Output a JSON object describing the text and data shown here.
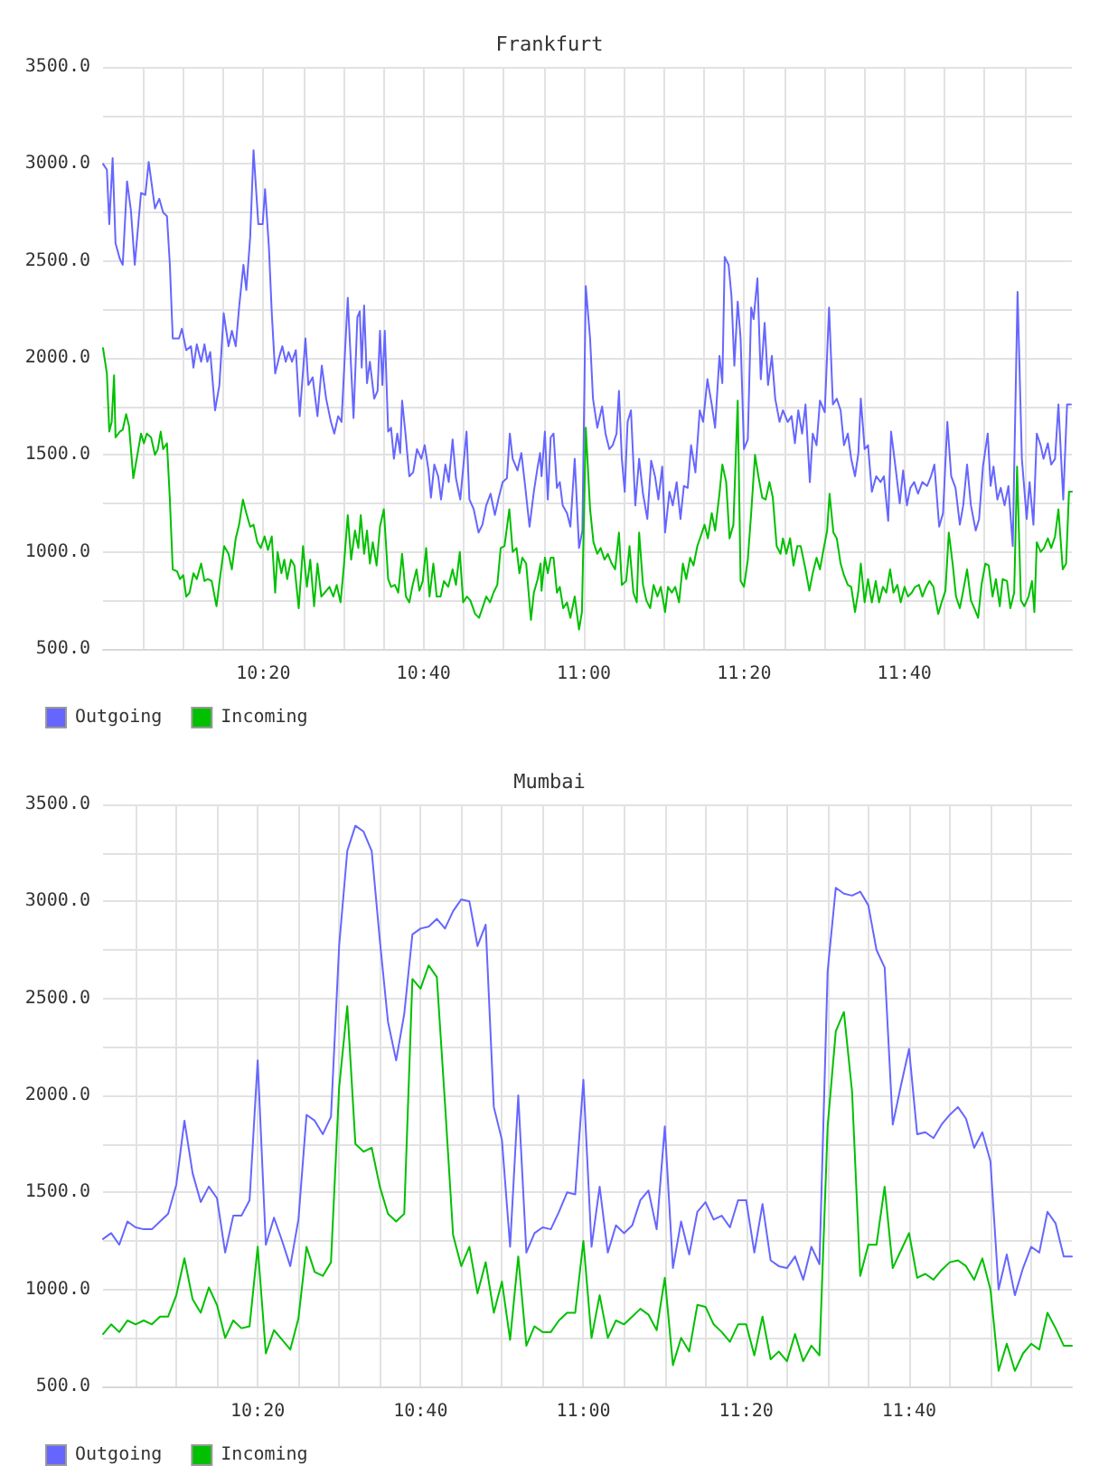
{
  "chart_data": [
    {
      "type": "line",
      "title": "Frankfurt",
      "xlim": [
        10,
        12.015
      ],
      "ylim": [
        500,
        3500
      ],
      "xticks": [
        {
          "value": 10.0833,
          "label": null
        },
        {
          "value": 10.1667,
          "label": null
        },
        {
          "value": 10.25,
          "label": null
        },
        {
          "value": 10.3333,
          "label": "10:20"
        },
        {
          "value": 10.4167,
          "label": null
        },
        {
          "value": 10.5,
          "label": null
        },
        {
          "value": 10.5833,
          "label": null
        },
        {
          "value": 10.6667,
          "label": "10:40"
        },
        {
          "value": 10.75,
          "label": null
        },
        {
          "value": 10.8333,
          "label": null
        },
        {
          "value": 10.9167,
          "label": null
        },
        {
          "value": 11,
          "label": "11:00"
        },
        {
          "value": 11.0833,
          "label": null
        },
        {
          "value": 11.1667,
          "label": null
        },
        {
          "value": 11.25,
          "label": null
        },
        {
          "value": 11.3333,
          "label": "11:20"
        },
        {
          "value": 11.4167,
          "label": null
        },
        {
          "value": 11.5,
          "label": null
        },
        {
          "value": 11.5833,
          "label": null
        },
        {
          "value": 11.6667,
          "label": "11:40"
        },
        {
          "value": 11.75,
          "label": null
        },
        {
          "value": 11.8333,
          "label": null
        },
        {
          "value": 11.9167,
          "label": null
        }
      ],
      "yticks": [
        {
          "value": 500,
          "label": "500.0"
        },
        {
          "value": 750,
          "label": null
        },
        {
          "value": 1000,
          "label": "1000.0"
        },
        {
          "value": 1250,
          "label": null
        },
        {
          "value": 1500,
          "label": "1500.0"
        },
        {
          "value": 1750,
          "label": null
        },
        {
          "value": 2000,
          "label": "2000.0"
        },
        {
          "value": 2250,
          "label": null
        },
        {
          "value": 2500,
          "label": "2500.0"
        },
        {
          "value": 2750,
          "label": null
        },
        {
          "value": 3000,
          "label": "3000.0"
        },
        {
          "value": 3250,
          "label": null
        },
        {
          "value": 3500,
          "label": "3500.0"
        }
      ],
      "grid": true,
      "legend": "bottom left",
      "marker": "none",
      "series": [
        {
          "name": "Outgoing",
          "color": "#6666ff",
          "x": [
            10.0,
            10.008,
            10.013,
            10.02,
            10.026,
            10.035,
            10.041,
            10.05,
            10.058,
            10.066,
            10.079,
            10.088,
            10.095,
            10.108,
            10.117,
            10.125,
            10.133,
            10.139,
            10.145,
            10.158,
            10.164,
            10.173,
            10.183,
            10.188,
            10.195,
            10.204,
            10.211,
            10.217,
            10.223,
            10.233,
            10.242,
            10.251,
            10.261,
            10.268,
            10.276,
            10.283,
            10.292,
            10.298,
            10.306,
            10.313,
            10.323,
            10.332,
            10.337,
            10.345,
            10.351,
            10.358,
            10.367,
            10.373,
            10.38,
            10.386,
            10.393,
            10.401,
            10.409,
            10.421,
            10.427,
            10.436,
            10.446,
            10.455,
            10.464,
            10.474,
            10.481,
            10.489,
            10.496,
            10.501,
            10.509,
            10.521,
            10.529,
            10.534,
            10.538,
            10.543,
            10.549,
            10.555,
            10.564,
            10.571,
            10.576,
            10.581,
            10.586,
            10.593,
            10.599,
            10.605,
            10.612,
            10.618,
            10.622,
            10.629,
            10.637,
            10.645,
            10.653,
            10.662,
            10.669,
            10.677,
            10.682,
            10.689,
            10.697,
            10.703,
            10.712,
            10.719,
            10.727,
            10.734,
            10.743,
            10.756,
            10.762,
            10.771,
            10.781,
            10.789,
            10.797,
            10.806,
            10.815,
            10.822,
            10.831,
            10.84,
            10.846,
            10.852,
            10.862,
            10.87,
            10.877,
            10.887,
            10.896,
            10.904,
            10.909,
            10.912,
            10.919,
            10.925,
            10.931,
            10.937,
            10.944,
            10.95,
            10.956,
            10.965,
            10.972,
            10.981,
            10.99,
            10.997,
            11.004,
            11.013,
            11.019,
            11.028,
            11.038,
            11.045,
            11.053,
            11.06,
            11.068,
            11.073,
            11.079,
            11.085,
            11.091,
            11.098,
            11.107,
            11.115,
            11.123,
            11.132,
            11.14,
            11.148,
            11.155,
            11.163,
            11.169,
            11.178,
            11.185,
            11.193,
            11.201,
            11.208,
            11.216,
            11.223,
            11.232,
            11.241,
            11.248,
            11.257,
            11.266,
            11.273,
            11.282,
            11.288,
            11.293,
            11.301,
            11.307,
            11.313,
            11.32,
            11.326,
            11.333,
            11.341,
            11.348,
            11.353,
            11.361,
            11.368,
            11.376,
            11.383,
            11.391,
            11.398,
            11.407,
            11.414,
            11.424,
            11.432,
            11.439,
            11.446,
            11.454,
            11.461,
            11.47,
            11.476,
            11.484,
            11.491,
            11.501,
            11.51,
            11.518,
            11.526,
            11.534,
            11.541,
            11.549,
            11.556,
            11.564,
            11.571,
            11.576,
            11.584,
            11.591,
            11.599,
            11.608,
            11.617,
            11.624,
            11.633,
            11.639,
            11.649,
            11.657,
            11.664,
            11.672,
            11.679,
            11.687,
            11.695,
            11.704,
            11.714,
            11.722,
            11.729,
            11.739,
            11.747,
            11.756,
            11.764,
            11.773,
            11.782,
            11.789,
            11.797,
            11.805,
            11.815,
            11.822,
            11.83,
            11.84,
            11.846,
            11.852,
            11.86,
            11.867,
            11.875,
            11.883,
            11.892,
            11.902,
            11.911,
            11.921,
            11.927,
            11.935,
            11.942,
            11.95,
            11.956,
            11.965,
            11.972,
            11.98,
            11.987,
            11.997,
            12.005,
            12.013
          ],
          "values": [
            3000,
            2970,
            2690,
            3030,
            2590,
            2510,
            2480,
            2910,
            2760,
            2480,
            2850,
            2840,
            3010,
            2770,
            2820,
            2750,
            2730,
            2480,
            2100,
            2100,
            2150,
            2040,
            2060,
            1950,
            2070,
            1980,
            2070,
            1980,
            2030,
            1730,
            1860,
            2230,
            2060,
            2140,
            2060,
            2260,
            2480,
            2350,
            2620,
            3070,
            2690,
            2690,
            2870,
            2570,
            2230,
            1920,
            2010,
            2060,
            1980,
            2030,
            1980,
            2040,
            1700,
            2100,
            1860,
            1900,
            1700,
            1960,
            1790,
            1670,
            1610,
            1700,
            1670,
            1920,
            2310,
            1690,
            2210,
            2240,
            1950,
            2270,
            1870,
            1980,
            1790,
            1830,
            2140,
            1860,
            2140,
            1620,
            1640,
            1480,
            1610,
            1510,
            1780,
            1610,
            1390,
            1410,
            1530,
            1480,
            1550,
            1420,
            1280,
            1450,
            1390,
            1270,
            1450,
            1360,
            1580,
            1380,
            1270,
            1620,
            1270,
            1220,
            1100,
            1140,
            1240,
            1300,
            1190,
            1270,
            1360,
            1380,
            1610,
            1480,
            1420,
            1510,
            1360,
            1130,
            1310,
            1440,
            1510,
            1390,
            1620,
            1270,
            1590,
            1610,
            1330,
            1360,
            1240,
            1200,
            1130,
            1480,
            1020,
            1110,
            2370,
            2100,
            1790,
            1640,
            1750,
            1610,
            1530,
            1550,
            1610,
            1830,
            1480,
            1310,
            1670,
            1730,
            1240,
            1480,
            1300,
            1170,
            1470,
            1390,
            1270,
            1440,
            1100,
            1310,
            1240,
            1360,
            1170,
            1340,
            1330,
            1550,
            1410,
            1730,
            1670,
            1890,
            1760,
            1640,
            2010,
            1870,
            2520,
            2480,
            2320,
            1960,
            2290,
            2100,
            1530,
            1580,
            2260,
            2200,
            2410,
            1890,
            2180,
            1860,
            2010,
            1790,
            1670,
            1730,
            1670,
            1700,
            1560,
            1730,
            1610,
            1760,
            1360,
            1610,
            1550,
            1780,
            1720,
            2260,
            1760,
            1790,
            1730,
            1550,
            1610,
            1480,
            1390,
            1510,
            1790,
            1530,
            1550,
            1310,
            1390,
            1360,
            1390,
            1160,
            1620,
            1420,
            1250,
            1420,
            1240,
            1330,
            1360,
            1300,
            1360,
            1340,
            1390,
            1450,
            1130,
            1200,
            1670,
            1390,
            1330,
            1140,
            1240,
            1450,
            1240,
            1110,
            1170,
            1440,
            1610,
            1340,
            1440,
            1270,
            1330,
            1240,
            1340,
            1030,
            2340,
            1480,
            1170,
            1360,
            1140,
            1610,
            1550,
            1480,
            1560,
            1450,
            1480,
            1760,
            1270,
            1760,
            1760
          ]
        },
        {
          "name": "Incoming",
          "color": "#00c000",
          "x": [
            10.0,
            10.008,
            10.013,
            10.018,
            10.023,
            10.026,
            10.035,
            10.041,
            10.048,
            10.054,
            10.063,
            10.07,
            10.079,
            10.085,
            10.091,
            10.1,
            10.108,
            10.114,
            10.12,
            10.125,
            10.133,
            10.139,
            10.145,
            10.154,
            10.16,
            10.167,
            10.173,
            10.18,
            10.188,
            10.195,
            10.204,
            10.211,
            10.218,
            10.226,
            10.236,
            10.243,
            10.252,
            10.261,
            10.268,
            10.276,
            10.283,
            10.291,
            10.298,
            10.306,
            10.313,
            10.321,
            10.328,
            10.336,
            10.343,
            10.351,
            10.358,
            10.363,
            10.371,
            10.377,
            10.383,
            10.391,
            10.398,
            10.407,
            10.416,
            10.424,
            10.431,
            10.439,
            10.446,
            10.454,
            10.461,
            10.471,
            10.479,
            10.486,
            10.494,
            10.501,
            10.509,
            10.516,
            10.524,
            10.531,
            10.536,
            10.543,
            10.549,
            10.555,
            10.561,
            10.569,
            10.576,
            10.584,
            10.593,
            10.599,
            10.607,
            10.614,
            10.622,
            10.63,
            10.637,
            10.644,
            10.652,
            10.658,
            10.665,
            10.672,
            10.679,
            10.687,
            10.694,
            10.702,
            10.709,
            10.718,
            10.727,
            10.734,
            10.742,
            10.749,
            10.757,
            10.764,
            10.774,
            10.782,
            10.789,
            10.797,
            10.805,
            10.812,
            10.82,
            10.827,
            10.835,
            10.845,
            10.852,
            10.86,
            10.866,
            10.872,
            10.88,
            10.89,
            10.896,
            10.904,
            10.91,
            10.912,
            10.919,
            10.925,
            10.931,
            10.937,
            10.944,
            10.95,
            10.957,
            10.965,
            10.972,
            10.981,
            10.99,
            10.996,
            11.004,
            11.013,
            11.02,
            11.028,
            11.035,
            11.043,
            11.05,
            11.058,
            11.065,
            11.073,
            11.079,
            11.088,
            11.095,
            11.103,
            11.11,
            11.115,
            11.123,
            11.13,
            11.138,
            11.145,
            11.153,
            11.16,
            11.169,
            11.175,
            11.183,
            11.19,
            11.198,
            11.206,
            11.213,
            11.221,
            11.228,
            11.236,
            11.243,
            11.251,
            11.258,
            11.266,
            11.273,
            11.282,
            11.288,
            11.296,
            11.303,
            11.311,
            11.32,
            11.326,
            11.333,
            11.341,
            11.348,
            11.356,
            11.363,
            11.371,
            11.378,
            11.386,
            11.393,
            11.401,
            11.409,
            11.414,
            11.421,
            11.429,
            11.436,
            11.444,
            11.451,
            11.461,
            11.469,
            11.476,
            11.484,
            11.491,
            11.499,
            11.506,
            11.511,
            11.519,
            11.526,
            11.534,
            11.541,
            11.549,
            11.556,
            11.564,
            11.571,
            11.576,
            11.584,
            11.591,
            11.599,
            11.607,
            11.614,
            11.622,
            11.629,
            11.637,
            11.644,
            11.652,
            11.659,
            11.667,
            11.674,
            11.682,
            11.689,
            11.697,
            11.704,
            11.712,
            11.719,
            11.727,
            11.737,
            11.744,
            11.752,
            11.759,
            11.767,
            11.774,
            11.782,
            11.789,
            11.797,
            11.805,
            11.812,
            11.82,
            11.827,
            11.835,
            11.842,
            11.85,
            11.857,
            11.865,
            11.871,
            11.88,
            11.887,
            11.895,
            11.901,
            11.909,
            11.916,
            11.925,
            11.932,
            11.937,
            11.942,
            11.95,
            11.957,
            11.965,
            11.972,
            11.98,
            11.987,
            11.996,
            12.003,
            12.009,
            12.015
          ],
          "values": [
            2050,
            1920,
            1620,
            1670,
            1910,
            1590,
            1620,
            1630,
            1710,
            1650,
            1380,
            1480,
            1610,
            1560,
            1610,
            1590,
            1500,
            1530,
            1620,
            1530,
            1560,
            1270,
            910,
            900,
            860,
            880,
            770,
            790,
            890,
            860,
            940,
            850,
            860,
            850,
            720,
            860,
            1030,
            990,
            910,
            1070,
            1140,
            1270,
            1200,
            1130,
            1140,
            1050,
            1020,
            1080,
            1010,
            1080,
            790,
            1000,
            890,
            960,
            860,
            960,
            930,
            710,
            1030,
            820,
            960,
            720,
            940,
            770,
            790,
            820,
            770,
            830,
            740,
            930,
            1190,
            960,
            1110,
            1020,
            1190,
            990,
            1110,
            940,
            1050,
            930,
            1130,
            1220,
            860,
            820,
            830,
            790,
            990,
            770,
            740,
            830,
            910,
            800,
            850,
            1020,
            770,
            940,
            770,
            770,
            850,
            820,
            910,
            830,
            1000,
            740,
            770,
            750,
            680,
            660,
            710,
            770,
            740,
            790,
            830,
            1020,
            1030,
            1220,
            1000,
            1020,
            890,
            970,
            940,
            650,
            790,
            860,
            940,
            800,
            970,
            890,
            970,
            970,
            790,
            820,
            710,
            740,
            660,
            770,
            600,
            690,
            1640,
            1220,
            1050,
            990,
            1020,
            960,
            990,
            940,
            910,
            1100,
            830,
            850,
            1030,
            790,
            740,
            1100,
            830,
            750,
            710,
            830,
            770,
            820,
            690,
            820,
            790,
            820,
            740,
            940,
            860,
            970,
            930,
            1030,
            1080,
            1140,
            1070,
            1200,
            1110,
            1300,
            1450,
            1360,
            1070,
            1140,
            1780,
            850,
            820,
            960,
            1200,
            1500,
            1390,
            1280,
            1270,
            1360,
            1280,
            1030,
            990,
            1070,
            990,
            1070,
            930,
            1030,
            1030,
            910,
            800,
            890,
            970,
            910,
            1020,
            1110,
            1300,
            1100,
            1070,
            940,
            880,
            830,
            820,
            690,
            800,
            940,
            740,
            860,
            740,
            850,
            740,
            820,
            790,
            910,
            790,
            830,
            740,
            820,
            770,
            790,
            820,
            830,
            770,
            820,
            850,
            820,
            680,
            740,
            800,
            1100,
            940,
            770,
            710,
            800,
            910,
            750,
            710,
            660,
            830,
            940,
            930,
            770,
            860,
            720,
            860,
            850,
            710,
            790,
            1440,
            750,
            720,
            770,
            850,
            690,
            1050,
            1000,
            1020,
            1070,
            1020,
            1080,
            1220,
            910,
            940,
            1310,
            1310
          ]
        }
      ]
    },
    {
      "type": "line",
      "title": "Mumbai",
      "xlim": [
        10.0167,
        12
      ],
      "ylim": [
        500,
        3500
      ],
      "xticks": [
        {
          "value": 10.0833,
          "label": null
        },
        {
          "value": 10.1667,
          "label": null
        },
        {
          "value": 10.25,
          "label": null
        },
        {
          "value": 10.3333,
          "label": "10:20"
        },
        {
          "value": 10.4167,
          "label": null
        },
        {
          "value": 10.5,
          "label": null
        },
        {
          "value": 10.5833,
          "label": null
        },
        {
          "value": 10.6667,
          "label": "10:40"
        },
        {
          "value": 10.75,
          "label": null
        },
        {
          "value": 10.8333,
          "label": null
        },
        {
          "value": 10.9167,
          "label": null
        },
        {
          "value": 11,
          "label": "11:00"
        },
        {
          "value": 11.0833,
          "label": null
        },
        {
          "value": 11.1667,
          "label": null
        },
        {
          "value": 11.25,
          "label": null
        },
        {
          "value": 11.3333,
          "label": "11:20"
        },
        {
          "value": 11.4167,
          "label": null
        },
        {
          "value": 11.5,
          "label": null
        },
        {
          "value": 11.5833,
          "label": null
        },
        {
          "value": 11.6667,
          "label": "11:40"
        },
        {
          "value": 11.75,
          "label": null
        },
        {
          "value": 11.8333,
          "label": null
        },
        {
          "value": 11.9167,
          "label": null
        }
      ],
      "yticks": [
        {
          "value": 500,
          "label": "500.0"
        },
        {
          "value": 750,
          "label": null
        },
        {
          "value": 1000,
          "label": "1000.0"
        },
        {
          "value": 1250,
          "label": null
        },
        {
          "value": 1500,
          "label": "1500.0"
        },
        {
          "value": 1750,
          "label": null
        },
        {
          "value": 2000,
          "label": "2000.0"
        },
        {
          "value": 2250,
          "label": null
        },
        {
          "value": 2500,
          "label": "2500.0"
        },
        {
          "value": 2750,
          "label": null
        },
        {
          "value": 3000,
          "label": "3000.0"
        },
        {
          "value": 3250,
          "label": null
        },
        {
          "value": 3500,
          "label": "3500.0"
        }
      ],
      "grid": true,
      "legend": "bottom left",
      "marker": "none",
      "x": [
        10.0167,
        10.0333,
        10.05,
        10.0667,
        10.0833,
        10.1,
        10.1167,
        10.1333,
        10.15,
        10.1667,
        10.1833,
        10.2,
        10.2167,
        10.2333,
        10.25,
        10.2667,
        10.2833,
        10.3,
        10.3167,
        10.3333,
        10.35,
        10.3667,
        10.3833,
        10.4,
        10.4167,
        10.4333,
        10.45,
        10.4667,
        10.4833,
        10.5,
        10.5167,
        10.5333,
        10.55,
        10.5667,
        10.5833,
        10.6,
        10.6167,
        10.6333,
        10.65,
        10.6667,
        10.6833,
        10.7,
        10.7167,
        10.7333,
        10.75,
        10.7667,
        10.7833,
        10.8,
        10.8167,
        10.8333,
        10.85,
        10.8667,
        10.8833,
        10.9,
        10.9167,
        10.9333,
        10.95,
        10.9667,
        10.9833,
        11,
        11.0167,
        11.0333,
        11.05,
        11.0667,
        11.0833,
        11.1,
        11.1167,
        11.1333,
        11.15,
        11.1667,
        11.1833,
        11.2,
        11.2167,
        11.2333,
        11.25,
        11.2667,
        11.2833,
        11.3,
        11.3167,
        11.3333,
        11.35,
        11.3667,
        11.3833,
        11.4,
        11.4167,
        11.4333,
        11.45,
        11.4667,
        11.4833,
        11.5,
        11.5167,
        11.5333,
        11.55,
        11.5667,
        11.5833,
        11.6,
        11.6167,
        11.6333,
        11.65,
        11.6667,
        11.6833,
        11.7,
        11.7167,
        11.7333,
        11.75,
        11.7667,
        11.7833,
        11.8,
        11.8167,
        11.8333,
        11.85,
        11.8667,
        11.8833,
        11.9,
        11.9167,
        11.9333,
        11.95,
        11.9667,
        11.9833,
        12
      ],
      "series": [
        {
          "name": "Outgoing",
          "color": "#6666ff",
          "values": [
            1260,
            1290,
            1230,
            1350,
            1320,
            1310,
            1310,
            1350,
            1390,
            1540,
            1870,
            1600,
            1450,
            1530,
            1470,
            1190,
            1380,
            1380,
            1460,
            2180,
            1230,
            1370,
            1250,
            1120,
            1360,
            1900,
            1870,
            1800,
            1890,
            2770,
            3260,
            3390,
            3360,
            3260,
            2800,
            2380,
            2180,
            2420,
            2830,
            2860,
            2870,
            2910,
            2860,
            2950,
            3010,
            3000,
            2770,
            2880,
            1940,
            1770,
            1220,
            2000,
            1190,
            1290,
            1320,
            1310,
            1400,
            1500,
            1490,
            2080,
            1220,
            1530,
            1190,
            1330,
            1290,
            1330,
            1460,
            1510,
            1310,
            1840,
            1110,
            1350,
            1180,
            1400,
            1450,
            1360,
            1380,
            1320,
            1460,
            1460,
            1190,
            1440,
            1150,
            1120,
            1110,
            1170,
            1050,
            1220,
            1130,
            2640,
            3070,
            3040,
            3030,
            3050,
            2980,
            2750,
            2660,
            1850,
            2050,
            2240,
            1800,
            1810,
            1780,
            1850,
            1900,
            1940,
            1880,
            1730,
            1810,
            1660,
            1000,
            1180,
            970,
            1110,
            1220,
            1190,
            1400,
            1340,
            1170,
            1170
          ]
        },
        {
          "name": "Incoming",
          "color": "#00c000",
          "values": [
            770,
            820,
            780,
            840,
            820,
            840,
            820,
            860,
            860,
            970,
            1160,
            950,
            880,
            1010,
            920,
            750,
            840,
            800,
            810,
            1220,
            670,
            790,
            740,
            690,
            850,
            1220,
            1090,
            1070,
            1140,
            2040,
            2460,
            1750,
            1710,
            1730,
            1530,
            1390,
            1350,
            1390,
            2600,
            2550,
            2670,
            2610,
            1960,
            1280,
            1120,
            1220,
            980,
            1140,
            880,
            1040,
            740,
            1170,
            710,
            810,
            780,
            780,
            840,
            880,
            880,
            1250,
            750,
            970,
            750,
            840,
            820,
            860,
            900,
            870,
            790,
            1060,
            610,
            750,
            680,
            920,
            910,
            820,
            780,
            730,
            820,
            820,
            660,
            860,
            640,
            680,
            630,
            770,
            630,
            710,
            660,
            1840,
            2330,
            2430,
            2020,
            1070,
            1230,
            1230,
            1530,
            1110,
            1200,
            1290,
            1060,
            1080,
            1050,
            1100,
            1140,
            1150,
            1120,
            1050,
            1160,
            1000,
            580,
            720,
            580,
            670,
            720,
            690,
            880,
            800,
            710,
            710
          ]
        }
      ]
    }
  ]
}
